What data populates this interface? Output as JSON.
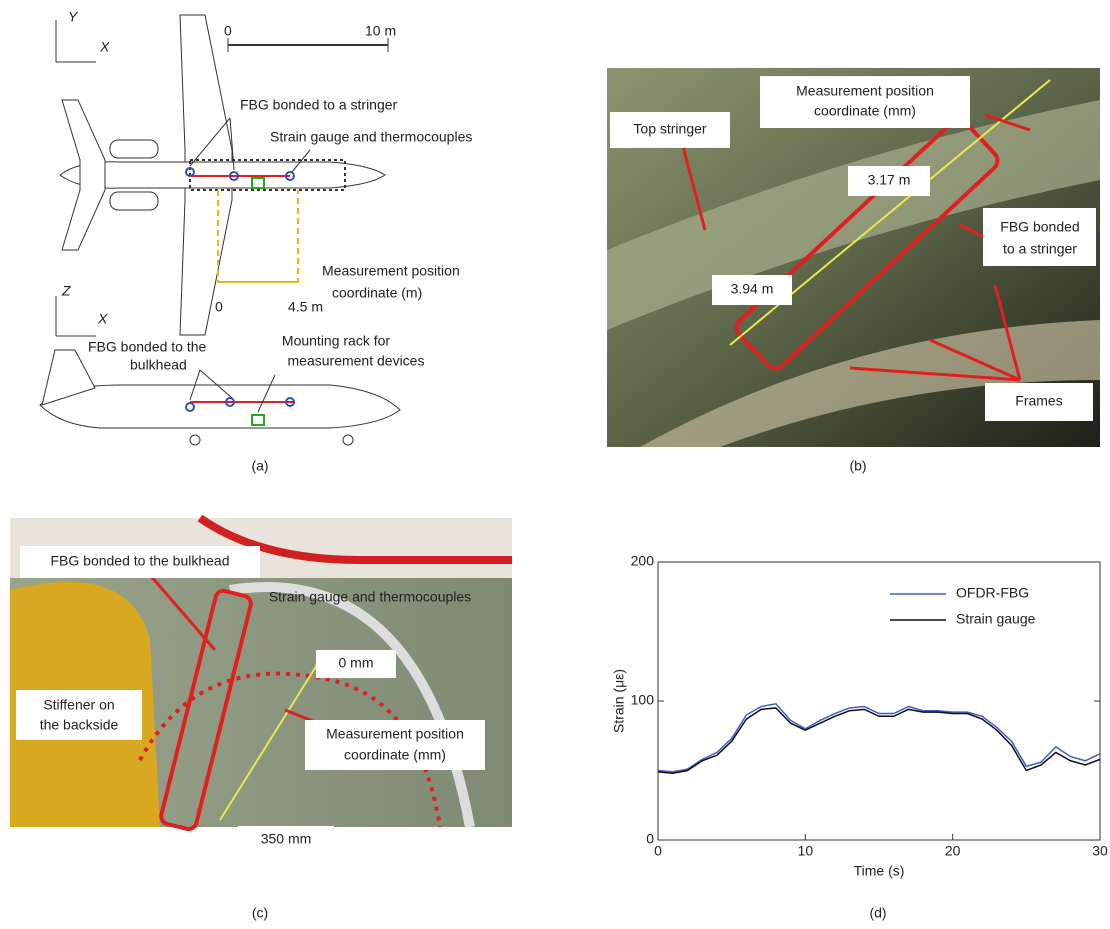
{
  "panel_a": {
    "axes_top": [
      "Y",
      "X"
    ],
    "scale": [
      "0",
      "10 m"
    ],
    "fbg_stringer": "FBG bonded to a stringer",
    "strain_gauge": "Strain gauge and thermocouples",
    "measurement": [
      "Measurement position",
      "coordinate (m)"
    ],
    "coord": [
      "0",
      "4.5 m"
    ],
    "axes_side": [
      "Z",
      "X"
    ],
    "fbg_bulkhead": [
      "FBG bonded to the",
      "bulkhead"
    ],
    "rack": [
      "Mounting rack for",
      "measurement devices"
    ],
    "caption": "(a)"
  },
  "panel_b": {
    "measurement": [
      "Measurement position",
      "coordinate (mm)"
    ],
    "top_stringer": "Top stringer",
    "dist1": "3.17 m",
    "fbg": [
      "FBG bonded",
      "to a stringer"
    ],
    "dist2": "3.94 m",
    "frames": "Frames",
    "caption": "(b)"
  },
  "panel_c": {
    "fbg": "FBG bonded to the bulkhead",
    "strain_gauge": "Strain gauge and thermocouples",
    "start": "0  mm",
    "stiffener": [
      "Stiffener on",
      "the backside"
    ],
    "measurement": [
      "Measurement position",
      "coordinate (mm)"
    ],
    "end": "350 mm",
    "caption": "(c)"
  },
  "panel_d": {
    "caption": "(d)"
  },
  "chart_data": {
    "type": "line",
    "x_label": "Time (s)",
    "y_label": "Strain (με)",
    "x": [
      0,
      1,
      2,
      3,
      4,
      5,
      6,
      7,
      8,
      9,
      10,
      11,
      12,
      13,
      14,
      15,
      16,
      17,
      18,
      19,
      20,
      21,
      22,
      23,
      24,
      25,
      26,
      27,
      28,
      29,
      30
    ],
    "series": [
      {
        "name": "OFDR-FBG",
        "color": "#3f5fc8",
        "values": [
          50,
          49,
          51,
          58,
          63,
          73,
          90,
          96,
          98,
          86,
          80,
          86,
          91,
          95,
          96,
          91,
          91,
          96,
          93,
          93,
          92,
          92,
          89,
          81,
          71,
          53,
          56,
          67,
          60,
          57,
          62
        ]
      },
      {
        "name": "Strain gauge",
        "color": "#111111",
        "values": [
          49,
          48,
          50,
          57,
          61,
          71,
          87,
          94,
          95,
          84,
          79,
          84,
          89,
          93,
          94,
          89,
          89,
          94,
          92,
          92,
          91,
          91,
          87,
          79,
          68,
          50,
          54,
          63,
          57,
          54,
          58
        ]
      }
    ],
    "xlim": [
      0,
      30
    ],
    "ylim": [
      0,
      200
    ],
    "xticks": [
      0,
      10,
      20,
      30
    ],
    "yticks": [
      0,
      100,
      200
    ],
    "legend": "upper right"
  }
}
